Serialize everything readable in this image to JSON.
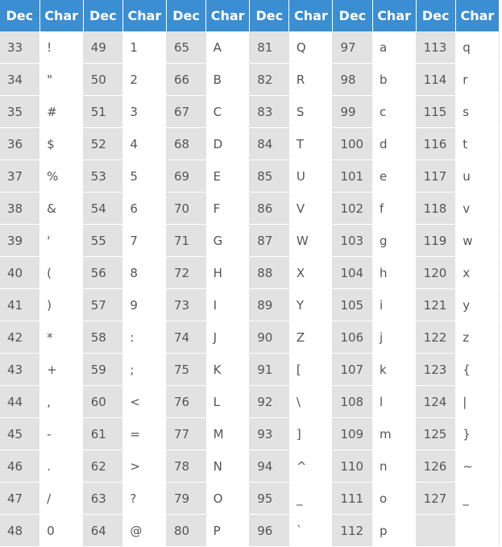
{
  "header": {
    "dec_label": "Dec",
    "char_label": "Char"
  },
  "columns": [
    [
      [
        "33",
        "!"
      ],
      [
        "34",
        "\""
      ],
      [
        "35",
        "#"
      ],
      [
        "36",
        "$"
      ],
      [
        "37",
        "%"
      ],
      [
        "38",
        "&"
      ],
      [
        "39",
        "'"
      ],
      [
        "40",
        "("
      ],
      [
        "41",
        ")"
      ],
      [
        "42",
        "*"
      ],
      [
        "43",
        "+"
      ],
      [
        "44",
        ","
      ],
      [
        "45",
        "-"
      ],
      [
        "46",
        "."
      ],
      [
        "47",
        "/"
      ],
      [
        "48",
        "0"
      ]
    ],
    [
      [
        "49",
        "1"
      ],
      [
        "50",
        "2"
      ],
      [
        "51",
        "3"
      ],
      [
        "52",
        "4"
      ],
      [
        "53",
        "5"
      ],
      [
        "54",
        "6"
      ],
      [
        "55",
        "7"
      ],
      [
        "56",
        "8"
      ],
      [
        "57",
        "9"
      ],
      [
        "58",
        ":"
      ],
      [
        "59",
        ";"
      ],
      [
        "60",
        "<"
      ],
      [
        "61",
        "="
      ],
      [
        "62",
        ">"
      ],
      [
        "63",
        "?"
      ],
      [
        "64",
        "@"
      ]
    ],
    [
      [
        "65",
        "A"
      ],
      [
        "66",
        "B"
      ],
      [
        "67",
        "C"
      ],
      [
        "68",
        "D"
      ],
      [
        "69",
        "E"
      ],
      [
        "70",
        "F"
      ],
      [
        "71",
        "G"
      ],
      [
        "72",
        "H"
      ],
      [
        "73",
        "I"
      ],
      [
        "74",
        "J"
      ],
      [
        "75",
        "K"
      ],
      [
        "76",
        "L"
      ],
      [
        "77",
        "M"
      ],
      [
        "78",
        "N"
      ],
      [
        "79",
        "O"
      ],
      [
        "80",
        "P"
      ]
    ],
    [
      [
        "81",
        "Q"
      ],
      [
        "82",
        "R"
      ],
      [
        "83",
        "S"
      ],
      [
        "84",
        "T"
      ],
      [
        "85",
        "U"
      ],
      [
        "86",
        "V"
      ],
      [
        "87",
        "W"
      ],
      [
        "88",
        "X"
      ],
      [
        "89",
        "Y"
      ],
      [
        "90",
        "Z"
      ],
      [
        "91",
        "["
      ],
      [
        "92",
        "\\"
      ],
      [
        "93",
        "]"
      ],
      [
        "94",
        "^"
      ],
      [
        "95",
        "_"
      ],
      [
        "96",
        "`"
      ]
    ],
    [
      [
        "97",
        "a"
      ],
      [
        "98",
        "b"
      ],
      [
        "99",
        "c"
      ],
      [
        "100",
        "d"
      ],
      [
        "101",
        "e"
      ],
      [
        "102",
        "f"
      ],
      [
        "103",
        "g"
      ],
      [
        "104",
        "h"
      ],
      [
        "105",
        "i"
      ],
      [
        "106",
        "j"
      ],
      [
        "107",
        "k"
      ],
      [
        "108",
        "l"
      ],
      [
        "109",
        "m"
      ],
      [
        "110",
        "n"
      ],
      [
        "111",
        "o"
      ],
      [
        "112",
        "p"
      ]
    ],
    [
      [
        "113",
        "q"
      ],
      [
        "114",
        "r"
      ],
      [
        "115",
        "s"
      ],
      [
        "116",
        "t"
      ],
      [
        "117",
        "u"
      ],
      [
        "118",
        "v"
      ],
      [
        "119",
        "w"
      ],
      [
        "120",
        "x"
      ],
      [
        "121",
        "y"
      ],
      [
        "122",
        "z"
      ],
      [
        "123",
        "{"
      ],
      [
        "124",
        "|"
      ],
      [
        "125",
        "}"
      ],
      [
        "126",
        "~"
      ],
      [
        "127",
        "_"
      ],
      [
        "",
        ""
      ]
    ]
  ]
}
